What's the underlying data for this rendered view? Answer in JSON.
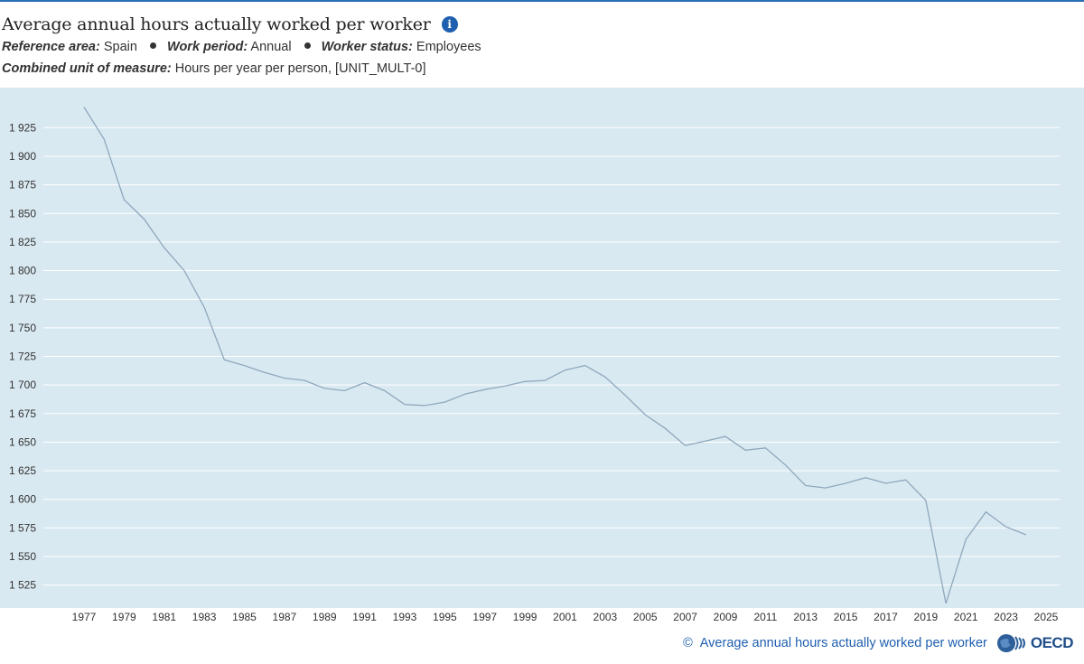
{
  "header": {
    "title": "Average annual hours actually worked per worker",
    "filters": [
      {
        "label": "Reference area:",
        "value": "Spain"
      },
      {
        "label": "Work period:",
        "value": "Annual"
      },
      {
        "label": "Worker status:",
        "value": "Employees"
      }
    ],
    "unit_label": "Combined unit of measure:",
    "unit_value": "Hours per year per person, [UNIT_MULT-0]"
  },
  "footer": {
    "copyright_symbol": "©",
    "source_text": "Average annual hours actually worked per worker",
    "logo_text": "OECD"
  },
  "colors": {
    "plot_background": "#d9e9f1",
    "gridline": "#ffffff",
    "line": "#8fa8bd",
    "accent": "#1f5fb0"
  },
  "chart_data": {
    "type": "line",
    "title": "Average annual hours actually worked per worker",
    "grid": true,
    "ylim": [
      1505,
      1960
    ],
    "xlim": [
      1976,
      2026
    ],
    "yticks": [
      1525,
      1550,
      1575,
      1600,
      1625,
      1650,
      1675,
      1700,
      1725,
      1750,
      1775,
      1800,
      1825,
      1850,
      1875,
      1900,
      1925
    ],
    "ytick_labels": [
      "1 525",
      "1 550",
      "1 575",
      "1 600",
      "1 625",
      "1 650",
      "1 675",
      "1 700",
      "1 725",
      "1 750",
      "1 775",
      "1 800",
      "1 825",
      "1 850",
      "1 875",
      "1 900",
      "1 925"
    ],
    "xticks": [
      1977,
      1979,
      1981,
      1983,
      1985,
      1987,
      1989,
      1991,
      1993,
      1995,
      1997,
      1999,
      2001,
      2003,
      2005,
      2007,
      2009,
      2011,
      2013,
      2015,
      2017,
      2019,
      2021,
      2023,
      2025
    ],
    "series": [
      {
        "x": [
          1977,
          1978,
          1979,
          1980,
          1981,
          1982,
          1983,
          1984,
          1985,
          1986,
          1987,
          1988,
          1989,
          1990,
          1991,
          1992,
          1993,
          1994,
          1995,
          1996,
          1997,
          1998,
          1999,
          2000,
          2001,
          2002,
          2003,
          2004,
          2005,
          2006,
          2007,
          2008,
          2009,
          2010,
          2011,
          2012,
          2013,
          2014,
          2015,
          2016,
          2017,
          2018,
          2019,
          2020,
          2021,
          2022,
          2023,
          2024
        ],
        "values": [
          1943,
          1915,
          1862,
          1845,
          1820,
          1800,
          1768,
          1722,
          1717,
          1711,
          1706,
          1704,
          1697,
          1695,
          1702,
          1695,
          1683,
          1682,
          1685,
          1692,
          1696,
          1699,
          1703,
          1704,
          1713,
          1717,
          1707,
          1691,
          1674,
          1662,
          1647,
          1651,
          1655,
          1643,
          1645,
          1630,
          1612,
          1610,
          1614,
          1619,
          1614,
          1617,
          1599,
          1509,
          1565,
          1589,
          1576,
          1569
        ]
      }
    ]
  }
}
